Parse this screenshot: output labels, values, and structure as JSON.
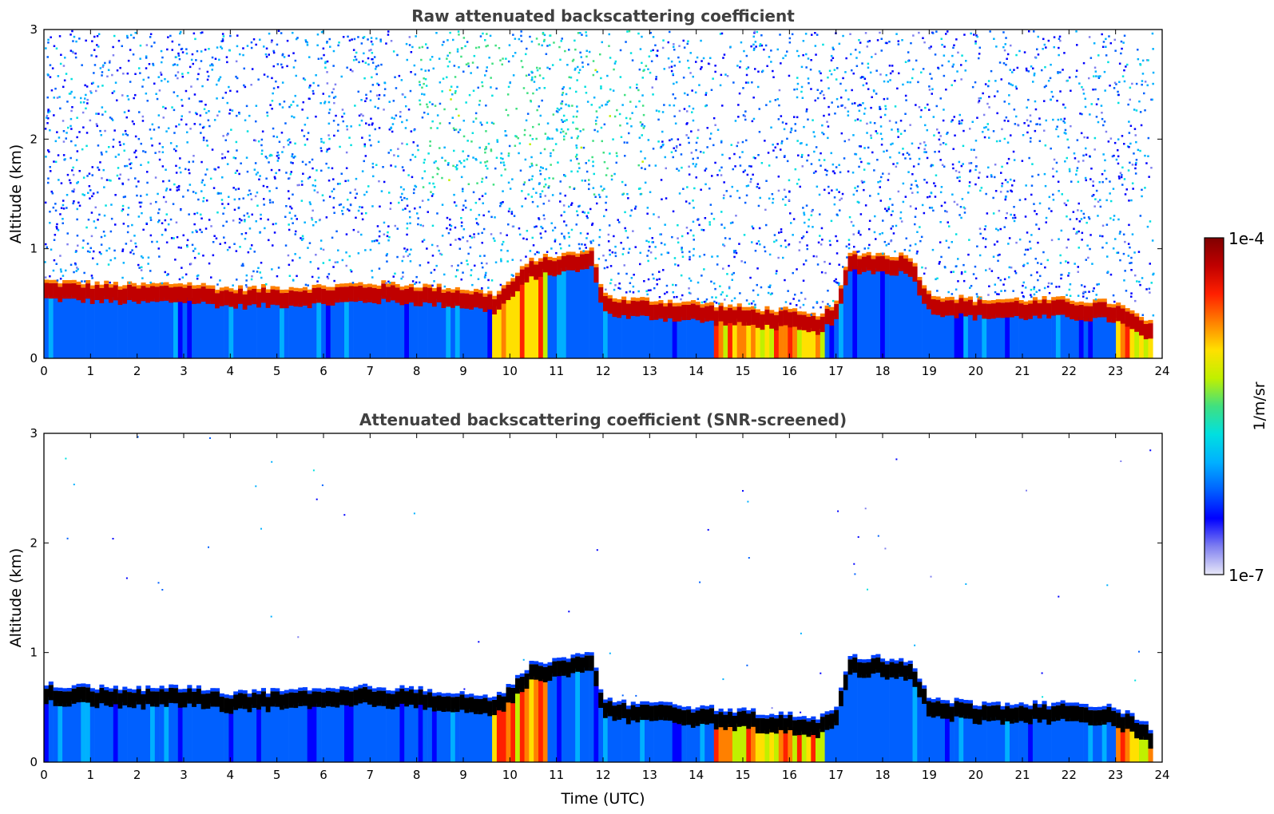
{
  "chart_data": [
    {
      "type": "heatmap",
      "title": "Raw attenuated backscattering coefficient",
      "ylabel": "Altitude (km)",
      "xlabel": "",
      "xlim": [
        0,
        24
      ],
      "ylim": [
        0,
        3
      ],
      "x_ticks": [
        "0",
        "1",
        "2",
        "3",
        "4",
        "5",
        "6",
        "7",
        "8",
        "9",
        "10",
        "11",
        "12",
        "13",
        "14",
        "15",
        "16",
        "17",
        "18",
        "19",
        "20",
        "21",
        "22",
        "23",
        "24"
      ],
      "y_ticks": [
        "0",
        "1",
        "2",
        "3"
      ],
      "color_scale": "log",
      "noise": "heavy",
      "boundary_layer_top_km": {
        "x": [
          0,
          1,
          2,
          3,
          4,
          5,
          6,
          7,
          8,
          9,
          9.7,
          10.5,
          11,
          11.8,
          12,
          12.5,
          13,
          14,
          15,
          16,
          16.5,
          17,
          17.3,
          18.6,
          19,
          20,
          21,
          22,
          23,
          23.8
        ],
        "y": [
          0.62,
          0.6,
          0.58,
          0.6,
          0.55,
          0.56,
          0.57,
          0.6,
          0.58,
          0.55,
          0.5,
          0.82,
          0.85,
          0.9,
          0.5,
          0.45,
          0.45,
          0.42,
          0.38,
          0.35,
          0.3,
          0.4,
          0.88,
          0.85,
          0.5,
          0.45,
          0.45,
          0.45,
          0.42,
          0.22
        ]
      }
    },
    {
      "type": "heatmap",
      "title": "Attenuated backscattering coefficient (SNR-screened)",
      "ylabel": "Altitude (km)",
      "xlabel": "Time (UTC)",
      "xlim": [
        0,
        24
      ],
      "ylim": [
        0,
        3
      ],
      "x_ticks": [
        "0",
        "1",
        "2",
        "3",
        "4",
        "5",
        "6",
        "7",
        "8",
        "9",
        "10",
        "11",
        "12",
        "13",
        "14",
        "15",
        "16",
        "17",
        "18",
        "19",
        "20",
        "21",
        "22",
        "23",
        "24"
      ],
      "y_ticks": [
        "0",
        "1",
        "2",
        "3"
      ],
      "color_scale": "log",
      "noise": "screened",
      "boundary_layer_top_km": {
        "x": [
          0,
          1,
          2,
          3,
          4,
          5,
          6,
          7,
          8,
          9,
          9.7,
          10.5,
          11,
          11.8,
          12,
          12.5,
          13,
          14,
          15,
          16,
          16.5,
          17,
          17.3,
          18.6,
          19,
          20,
          21,
          22,
          23,
          23.8
        ],
        "y": [
          0.62,
          0.6,
          0.58,
          0.6,
          0.55,
          0.56,
          0.57,
          0.6,
          0.58,
          0.55,
          0.5,
          0.82,
          0.85,
          0.9,
          0.5,
          0.45,
          0.45,
          0.42,
          0.38,
          0.35,
          0.3,
          0.4,
          0.88,
          0.85,
          0.5,
          0.45,
          0.45,
          0.45,
          0.42,
          0.22
        ]
      }
    }
  ],
  "colorbar": {
    "label": "1/m/sr",
    "max_label": "1e-4",
    "min_label": "1e-7",
    "colors": [
      "#e8e8f8",
      "#8080f0",
      "#0000ff",
      "#0060ff",
      "#00b0ff",
      "#00e0e0",
      "#40e080",
      "#c0f000",
      "#ffe000",
      "#ff8000",
      "#ff2000",
      "#c00000",
      "#800000"
    ]
  }
}
